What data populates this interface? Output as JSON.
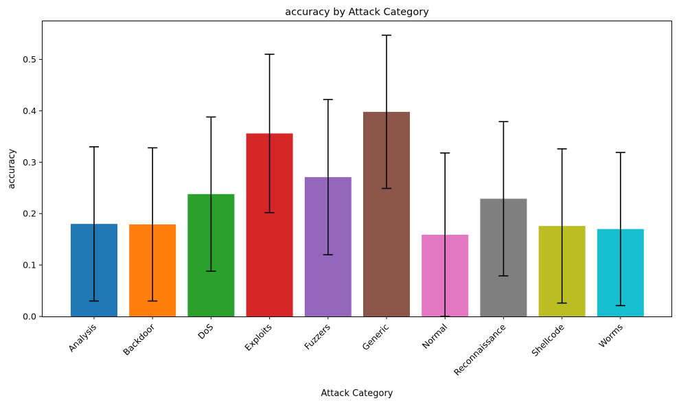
{
  "chart_data": {
    "type": "bar",
    "title": "accuracy by Attack Category",
    "xlabel": "Attack Category",
    "ylabel": "accuracy",
    "categories": [
      "Analysis",
      "Backdoor",
      "DoS",
      "Exploits",
      "Fuzzers",
      "Generic",
      "Normal",
      "Reconnaissance",
      "Shellcode",
      "Worms"
    ],
    "values": [
      0.18,
      0.179,
      0.238,
      0.356,
      0.271,
      0.398,
      0.159,
      0.229,
      0.176,
      0.17
    ],
    "error": [
      0.15,
      0.149,
      0.15,
      0.154,
      0.151,
      0.149,
      0.159,
      0.15,
      0.15,
      0.149
    ],
    "colors": [
      "#1f77b4",
      "#ff7f0e",
      "#2ca02c",
      "#d62728",
      "#9467bd",
      "#8c564b",
      "#e377c2",
      "#7f7f7f",
      "#bcbd22",
      "#17becf"
    ],
    "yticks": [
      "0.0",
      "0.1",
      "0.2",
      "0.3",
      "0.4",
      "0.5"
    ],
    "ylim": [
      0,
      0.5755
    ],
    "grid": false,
    "legend": "none"
  }
}
